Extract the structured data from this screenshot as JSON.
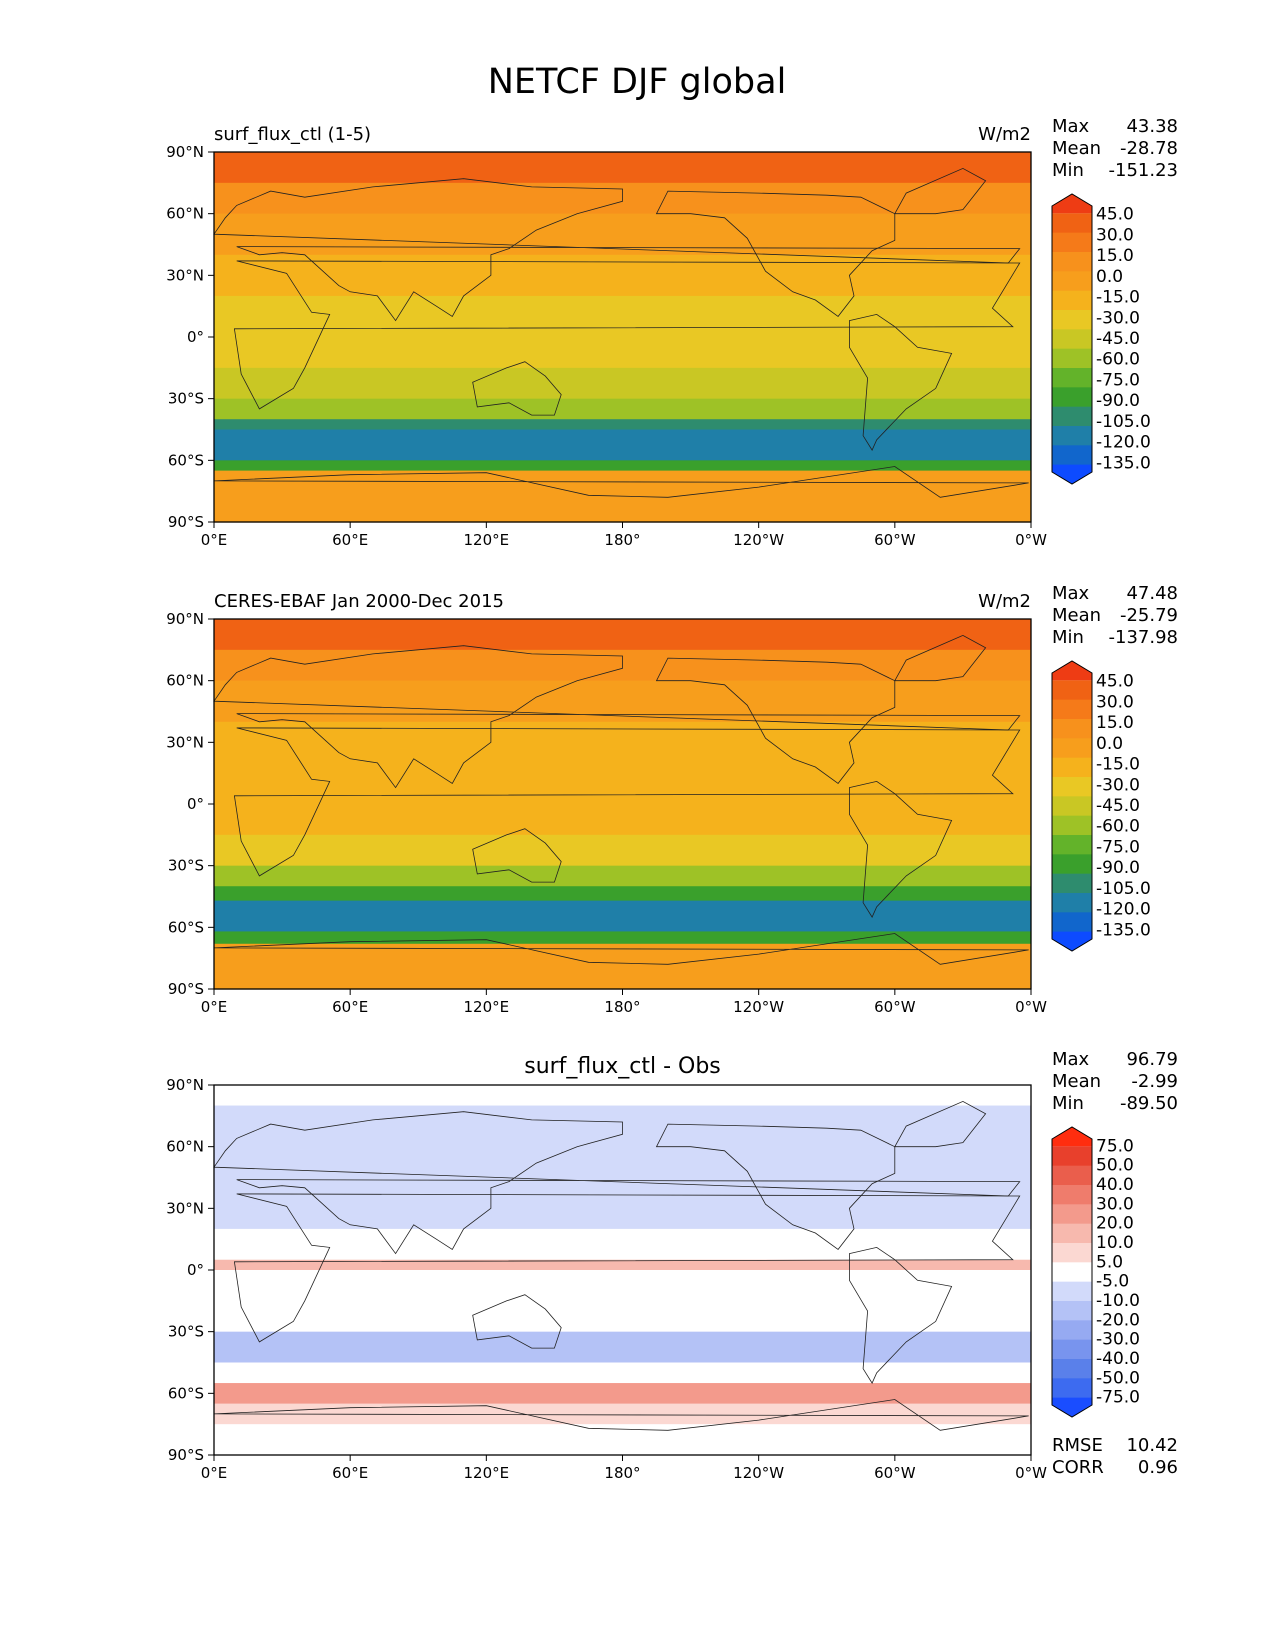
{
  "figure": {
    "title": "NETCF DJF global"
  },
  "palettes": {
    "absolute": [
      "#0d4bff",
      "#1166cc",
      "#1f7fa8",
      "#2e8c6e",
      "#3aa02c",
      "#63b32a",
      "#9ec226",
      "#c9c724",
      "#e9c824",
      "#f5b21c",
      "#f79e1c",
      "#f7911c",
      "#f57a19",
      "#f06214",
      "#ee3c14"
    ],
    "difference": [
      "#1a4dff",
      "#3d6bf0",
      "#5a80ea",
      "#7894ee",
      "#96aaf2",
      "#b4c2f6",
      "#d2dafa",
      "#ffffff",
      "#fbd8d2",
      "#f7b9ae",
      "#f39a8c",
      "#ef7c6c",
      "#ea5e4c",
      "#e8402c",
      "#ff2d0f"
    ]
  },
  "chart_data": [
    {
      "type": "heatmap",
      "title": "surf_flux_ctl (1-5)",
      "units": "W/m2",
      "xticks": [
        "0°E",
        "60°E",
        "120°E",
        "180°",
        "120°W",
        "60°W",
        "0°W"
      ],
      "yticks": [
        "90°N",
        "60°N",
        "30°N",
        "0°",
        "30°S",
        "60°S",
        "90°S"
      ],
      "stats": [
        {
          "label": "Max",
          "value": "43.38"
        },
        {
          "label": "Mean",
          "value": "-28.78"
        },
        {
          "label": "Min",
          "value": "-151.23"
        }
      ],
      "colorbar": {
        "labels": [
          "45.0",
          "30.0",
          "15.0",
          "0.0",
          "-15.0",
          "-30.0",
          "-45.0",
          "-60.0",
          "-75.0",
          "-90.0",
          "-105.0",
          "-120.0",
          "-135.0"
        ],
        "extend": "both"
      },
      "bands": [
        {
          "lat": [
            90,
            75
          ],
          "level": 13
        },
        {
          "lat": [
            75,
            60
          ],
          "level": 11
        },
        {
          "lat": [
            60,
            40
          ],
          "level": 10
        },
        {
          "lat": [
            40,
            20
          ],
          "level": 9
        },
        {
          "lat": [
            20,
            0
          ],
          "level": 8
        },
        {
          "lat": [
            0,
            -15
          ],
          "level": 8
        },
        {
          "lat": [
            -15,
            -30
          ],
          "level": 7
        },
        {
          "lat": [
            -30,
            -40
          ],
          "level": 6
        },
        {
          "lat": [
            -40,
            -45
          ],
          "level": 3
        },
        {
          "lat": [
            -45,
            -60
          ],
          "level": 2
        },
        {
          "lat": [
            -60,
            -65
          ],
          "level": 4
        },
        {
          "lat": [
            -65,
            -90
          ],
          "level": 10
        }
      ]
    },
    {
      "type": "heatmap",
      "title": "CERES-EBAF Jan 2000-Dec 2015",
      "units": "W/m2",
      "xticks": [
        "0°E",
        "60°E",
        "120°E",
        "180°",
        "120°W",
        "60°W",
        "0°W"
      ],
      "yticks": [
        "90°N",
        "60°N",
        "30°N",
        "0°",
        "30°S",
        "60°S",
        "90°S"
      ],
      "stats": [
        {
          "label": "Max",
          "value": "47.48"
        },
        {
          "label": "Mean",
          "value": "-25.79"
        },
        {
          "label": "Min",
          "value": "-137.98"
        }
      ],
      "colorbar": {
        "labels": [
          "45.0",
          "30.0",
          "15.0",
          "0.0",
          "-15.0",
          "-30.0",
          "-45.0",
          "-60.0",
          "-75.0",
          "-90.0",
          "-105.0",
          "-120.0",
          "-135.0"
        ],
        "extend": "both"
      },
      "bands": [
        {
          "lat": [
            90,
            75
          ],
          "level": 13
        },
        {
          "lat": [
            75,
            60
          ],
          "level": 11
        },
        {
          "lat": [
            60,
            40
          ],
          "level": 10
        },
        {
          "lat": [
            40,
            20
          ],
          "level": 9
        },
        {
          "lat": [
            20,
            -15
          ],
          "level": 9
        },
        {
          "lat": [
            -15,
            -30
          ],
          "level": 8
        },
        {
          "lat": [
            -30,
            -40
          ],
          "level": 6
        },
        {
          "lat": [
            -40,
            -47
          ],
          "level": 4
        },
        {
          "lat": [
            -47,
            -62
          ],
          "level": 2
        },
        {
          "lat": [
            -62,
            -68
          ],
          "level": 4
        },
        {
          "lat": [
            -68,
            -90
          ],
          "level": 10
        }
      ]
    },
    {
      "type": "heatmap",
      "title": "surf_flux_ctl - Obs",
      "units": "",
      "xticks": [
        "0°E",
        "60°E",
        "120°E",
        "180°",
        "120°W",
        "60°W",
        "0°W"
      ],
      "yticks": [
        "90°N",
        "60°N",
        "30°N",
        "0°",
        "30°S",
        "60°S",
        "90°S"
      ],
      "stats": [
        {
          "label": "Max",
          "value": "96.79"
        },
        {
          "label": "Mean",
          "value": "-2.99"
        },
        {
          "label": "Min",
          "value": "-89.50"
        }
      ],
      "colorbar": {
        "labels": [
          "75.0",
          "50.0",
          "40.0",
          "30.0",
          "20.0",
          "10.0",
          "5.0",
          "-5.0",
          "-10.0",
          "-20.0",
          "-30.0",
          "-40.0",
          "-50.0",
          "-75.0"
        ],
        "extend": "both"
      },
      "bottom_stats": [
        {
          "label": "RMSE",
          "value": "10.42"
        },
        {
          "label": "CORR",
          "value": "0.96"
        }
      ],
      "bands": [
        {
          "lat": [
            90,
            80
          ],
          "level": 7
        },
        {
          "lat": [
            80,
            60
          ],
          "level": 6
        },
        {
          "lat": [
            60,
            20
          ],
          "level": 6
        },
        {
          "lat": [
            20,
            5
          ],
          "level": 7
        },
        {
          "lat": [
            5,
            0
          ],
          "level": 9
        },
        {
          "lat": [
            0,
            -30
          ],
          "level": 7
        },
        {
          "lat": [
            -30,
            -45
          ],
          "level": 5
        },
        {
          "lat": [
            -45,
            -55
          ],
          "level": 7
        },
        {
          "lat": [
            -55,
            -65
          ],
          "level": 10
        },
        {
          "lat": [
            -65,
            -75
          ],
          "level": 8
        },
        {
          "lat": [
            -75,
            -90
          ],
          "level": 7
        }
      ]
    }
  ]
}
